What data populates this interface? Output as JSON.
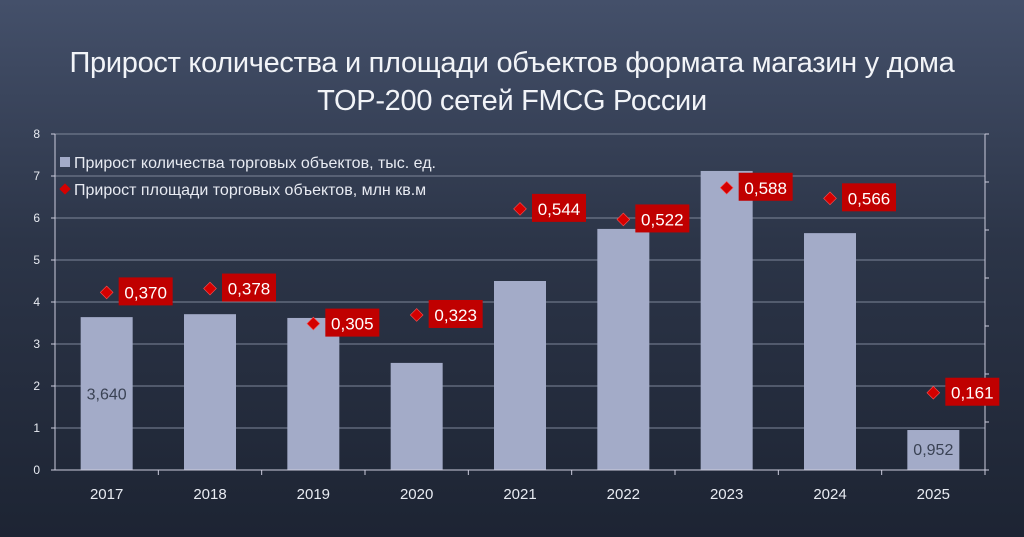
{
  "chart_data": {
    "type": "bar",
    "title": "Прирост количества и площади объектов формата магазин у дома TOP-200 сетей FMCG России",
    "title_lines": [
      "Прирост количества и площади объектов формата магазин у дома",
      "TOP-200 сетей FMCG России"
    ],
    "categories": [
      "2017",
      "2018",
      "2019",
      "2020",
      "2021",
      "2022",
      "2023",
      "2024",
      "2025"
    ],
    "series": [
      {
        "name": "Прирост количества торговых объектов, тыс. ед.",
        "type": "bar",
        "axis": "left",
        "color": "#a3abc8",
        "values": [
          3.64,
          3.71,
          3.62,
          2.55,
          4.5,
          5.74,
          7.12,
          5.64,
          0.952
        ],
        "data_labels": [
          "3,640",
          null,
          null,
          null,
          null,
          null,
          null,
          null,
          "0,952"
        ]
      },
      {
        "name": "Прирост площади торговых объектов, млн кв.м",
        "type": "scatter",
        "marker": "diamond",
        "axis": "right",
        "color": "#c00000",
        "values": [
          0.37,
          0.378,
          0.305,
          0.323,
          0.544,
          0.522,
          0.588,
          0.566,
          0.161
        ],
        "data_labels": [
          "0,370",
          "0,378",
          "0,305",
          "0,323",
          "0,544",
          "0,522",
          "0,588",
          "0,566",
          "0,161"
        ]
      }
    ],
    "ylim": [
      0,
      8
    ],
    "yticks": [
      "0",
      "1",
      "2",
      "3",
      "4",
      "5",
      "6",
      "7",
      "8"
    ],
    "y2lim": [
      0,
      0.7
    ],
    "grid": true,
    "legend": "top-left",
    "xlabel": "",
    "ylabel": ""
  }
}
